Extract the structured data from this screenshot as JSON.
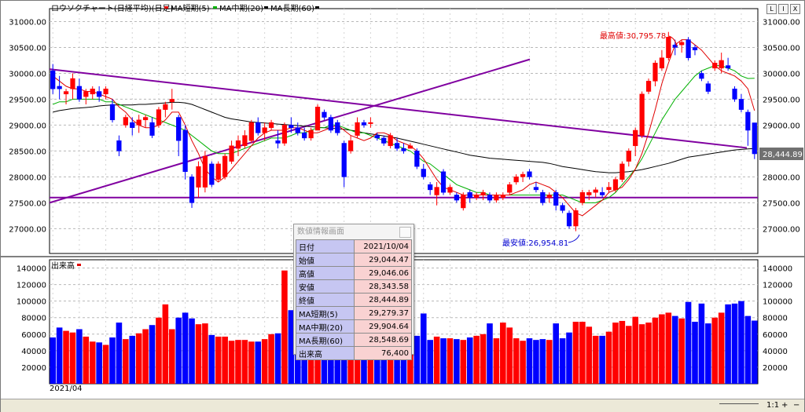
{
  "window": {
    "minimize": "L",
    "restore": "I",
    "close": "X"
  },
  "chart_title": "ロウソクチャート(日経平均)(日足)",
  "legend": [
    {
      "label": "MA短期(5)",
      "color": "#e00000"
    },
    {
      "label": "MA中期(20)",
      "color": "#00b000"
    },
    {
      "label": "MA長期(60)",
      "color": "#000000"
    }
  ],
  "volume_title": "出来高",
  "volume_legend_color": "#e00000",
  "annotations": {
    "high": "最高値:30,795.78",
    "low": "最安値:26,954.81"
  },
  "last_price_label": "28,444.89",
  "x_axis_label": "2021/04",
  "info_panel": {
    "title": "数値情報画面",
    "rows": [
      {
        "label": "日付",
        "value": "2021/10/04"
      },
      {
        "label": "始値",
        "value": "29,044.47"
      },
      {
        "label": "高値",
        "value": "29,046.06"
      },
      {
        "label": "安値",
        "value": "28,343.58"
      },
      {
        "label": "終値",
        "value": "28,444.89"
      },
      {
        "label": "MA短期(5)",
        "value": "29,279.37"
      },
      {
        "label": "MA中期(20)",
        "value": "29,904.64"
      },
      {
        "label": "MA長期(60)",
        "value": "28,548.69"
      },
      {
        "label": "出来高",
        "value": "76,400"
      }
    ]
  },
  "statusbar": {
    "zoom": "1:1",
    "plus": "+",
    "minus": "−"
  },
  "chart_data": [
    {
      "type": "candlestick",
      "title": "ロウソクチャート(日経平均)(日足)",
      "y_ticks": [
        "27000.00",
        "27500.00",
        "28000.00",
        "28500.00",
        "29000.00",
        "29500.00",
        "30000.00",
        "30500.00",
        "31000.00"
      ],
      "ylim": [
        26520,
        31250
      ],
      "series_names": [
        "MA短期(5)",
        "MA中期(20)",
        "MA長期(60)"
      ],
      "up_color": "#ff0000",
      "down_color": "#0000ff",
      "trendlines_color": "#8000a0",
      "horizontal_line": 27600,
      "candles": [
        [
          30050,
          30180,
          29600,
          29700
        ],
        [
          29750,
          29950,
          29500,
          29700
        ],
        [
          29600,
          29700,
          29400,
          29650
        ],
        [
          29700,
          30000,
          29500,
          29900
        ],
        [
          29750,
          29900,
          29450,
          29500
        ],
        [
          29550,
          29700,
          29400,
          29650
        ],
        [
          29600,
          29750,
          29500,
          29700
        ],
        [
          29650,
          29750,
          29450,
          29550
        ],
        [
          29600,
          29750,
          29500,
          29700
        ],
        [
          29400,
          29500,
          29050,
          29100
        ],
        [
          28700,
          28800,
          28400,
          28500
        ],
        [
          29000,
          29200,
          28950,
          29150
        ],
        [
          29050,
          29150,
          28800,
          28950
        ],
        [
          29000,
          29200,
          28850,
          29100
        ],
        [
          29100,
          29200,
          28950,
          29150
        ],
        [
          29050,
          29150,
          28750,
          28800
        ],
        [
          29000,
          29350,
          28950,
          29300
        ],
        [
          29300,
          29450,
          29150,
          29400
        ],
        [
          29450,
          29700,
          29300,
          29500
        ],
        [
          29150,
          29200,
          28400,
          28700
        ],
        [
          28900,
          29000,
          27950,
          28100
        ],
        [
          28000,
          28050,
          27400,
          27500
        ],
        [
          27800,
          28300,
          27600,
          28200
        ],
        [
          27800,
          28500,
          27700,
          28400
        ],
        [
          28250,
          28300,
          27800,
          27850
        ],
        [
          27950,
          28300,
          27900,
          28250
        ],
        [
          28000,
          28450,
          27950,
          28400
        ],
        [
          28300,
          28700,
          28250,
          28600
        ],
        [
          28550,
          28800,
          28400,
          28700
        ],
        [
          28600,
          28900,
          28550,
          28800
        ],
        [
          28700,
          29100,
          28650,
          29050
        ],
        [
          29050,
          29150,
          28800,
          28850
        ],
        [
          28850,
          29050,
          28700,
          28950
        ],
        [
          28950,
          29100,
          28900,
          29050
        ],
        [
          28700,
          28900,
          28550,
          28650
        ],
        [
          28650,
          29050,
          28600,
          29000
        ],
        [
          29000,
          29150,
          28850,
          28950
        ],
        [
          28950,
          29050,
          28800,
          28850
        ],
        [
          28850,
          28950,
          28700,
          28750
        ],
        [
          28750,
          28950,
          28700,
          28900
        ],
        [
          28900,
          29400,
          28900,
          29350
        ],
        [
          29250,
          29300,
          29100,
          29150
        ],
        [
          29150,
          29200,
          28850,
          28900
        ],
        [
          29050,
          29100,
          28800,
          28850
        ],
        [
          28650,
          28700,
          27800,
          28000
        ],
        [
          28500,
          28800,
          28450,
          28700
        ],
        [
          28800,
          29150,
          28750,
          29050
        ],
        [
          29050,
          29100,
          28950,
          29000
        ],
        [
          29050,
          29150,
          28950,
          29050
        ],
        [
          28800,
          28850,
          28700,
          28750
        ],
        [
          28750,
          28800,
          28600,
          28650
        ],
        [
          28600,
          28850,
          28550,
          28800
        ],
        [
          28650,
          28750,
          28500,
          28550
        ],
        [
          28550,
          28650,
          28450,
          28500
        ],
        [
          28550,
          28650,
          28550,
          28600
        ],
        [
          28500,
          28550,
          28150,
          28200
        ],
        [
          28150,
          28250,
          27950,
          28000
        ],
        [
          27850,
          27900,
          27650,
          27750
        ],
        [
          27650,
          27900,
          27450,
          27800
        ],
        [
          28100,
          28150,
          27650,
          27700
        ],
        [
          27700,
          27850,
          27650,
          27800
        ],
        [
          27650,
          27700,
          27500,
          27550
        ],
        [
          27400,
          27700,
          27350,
          27650
        ],
        [
          27700,
          27750,
          27500,
          27600
        ],
        [
          27600,
          27700,
          27550,
          27650
        ],
        [
          27650,
          27750,
          27550,
          27700
        ],
        [
          27650,
          27700,
          27500,
          27550
        ],
        [
          27550,
          27700,
          27500,
          27650
        ],
        [
          27600,
          27700,
          27550,
          27650
        ],
        [
          27700,
          27900,
          27650,
          27850
        ],
        [
          27900,
          28050,
          27850,
          28000
        ],
        [
          28000,
          28100,
          27900,
          28050
        ],
        [
          28100,
          28150,
          27950,
          28000
        ],
        [
          27800,
          27900,
          27700,
          27750
        ],
        [
          27700,
          27750,
          27450,
          27500
        ],
        [
          27600,
          27700,
          27500,
          27650
        ],
        [
          27700,
          27750,
          27350,
          27450
        ],
        [
          27450,
          27500,
          27300,
          27350
        ],
        [
          27300,
          27350,
          27000,
          27050
        ],
        [
          27050,
          27400,
          26950,
          27350
        ],
        [
          27500,
          27750,
          27450,
          27700
        ],
        [
          27650,
          27750,
          27550,
          27700
        ],
        [
          27700,
          27800,
          27600,
          27750
        ],
        [
          27700,
          27800,
          27600,
          27650
        ],
        [
          27750,
          27900,
          27700,
          27800
        ],
        [
          27750,
          28000,
          27700,
          27950
        ],
        [
          27950,
          28300,
          27900,
          28250
        ],
        [
          28300,
          28550,
          28200,
          28500
        ],
        [
          28600,
          28950,
          28400,
          28900
        ],
        [
          28800,
          29650,
          28750,
          29600
        ],
        [
          29650,
          29900,
          29600,
          29850
        ],
        [
          29850,
          30250,
          29750,
          30200
        ],
        [
          30100,
          30450,
          30050,
          30300
        ],
        [
          30300,
          30800,
          30250,
          30700
        ],
        [
          30550,
          30650,
          30350,
          30500
        ],
        [
          30550,
          30650,
          30400,
          30600
        ],
        [
          30650,
          30700,
          30250,
          30300
        ],
        [
          30500,
          30550,
          30350,
          30450
        ],
        [
          30000,
          30050,
          29850,
          29900
        ],
        [
          29800,
          29850,
          29600,
          29650
        ],
        [
          30100,
          30250,
          30050,
          30200
        ],
        [
          30100,
          30400,
          30000,
          30250
        ],
        [
          30150,
          30300,
          30050,
          30100
        ],
        [
          29700,
          29750,
          29450,
          29500
        ],
        [
          29500,
          29600,
          29250,
          29300
        ],
        [
          29250,
          29300,
          28600,
          28900
        ],
        [
          29044,
          29046,
          28344,
          28445
        ]
      ],
      "ma_short": [
        29950,
        29850,
        29750,
        29700,
        29700,
        29650,
        29650,
        29600,
        29550,
        29500,
        29350,
        29250,
        29100,
        29000,
        28950,
        28950,
        29000,
        29100,
        29250,
        29250,
        29000,
        28700,
        28450,
        28150,
        28000,
        27900,
        28000,
        28150,
        28300,
        28450,
        28600,
        28750,
        28850,
        28900,
        28900,
        28900,
        28950,
        28950,
        28900,
        28850,
        28850,
        28900,
        28950,
        29000,
        28900,
        28800,
        28750,
        28700,
        28750,
        28850,
        28850,
        28800,
        28700,
        28650,
        28600,
        28500,
        28350,
        28150,
        27950,
        27800,
        27750,
        27700,
        27650,
        27650,
        27650,
        27650,
        27650,
        27650,
        27650,
        27650,
        27700,
        27750,
        27850,
        27900,
        27850,
        27800,
        27700,
        27600,
        27450,
        27300,
        27250,
        27350,
        27450,
        27550,
        27700,
        27750,
        27800,
        27950,
        28150,
        28450,
        28850,
        29300,
        29800,
        30200,
        30550,
        30650,
        30650,
        30550,
        30450,
        30300,
        30150,
        30050,
        30000,
        29950,
        29850,
        29700,
        29279
      ],
      "ma_mid": [
        29400,
        29450,
        29450,
        29500,
        29500,
        29500,
        29500,
        29500,
        29450,
        29450,
        29400,
        29350,
        29300,
        29250,
        29200,
        29150,
        29100,
        29050,
        29000,
        28950,
        28900,
        28800,
        28700,
        28600,
        28500,
        28450,
        28450,
        28450,
        28500,
        28550,
        28600,
        28650,
        28700,
        28750,
        28750,
        28750,
        28800,
        28850,
        28850,
        28900,
        28950,
        28950,
        29000,
        29000,
        28950,
        28900,
        28850,
        28850,
        28800,
        28750,
        28700,
        28650,
        28600,
        28550,
        28500,
        28400,
        28300,
        28250,
        28150,
        28050,
        27950,
        27850,
        27800,
        27750,
        27700,
        27700,
        27650,
        27650,
        27650,
        27650,
        27650,
        27650,
        27650,
        27650,
        27650,
        27650,
        27650,
        27650,
        27600,
        27550,
        27500,
        27500,
        27500,
        27550,
        27600,
        27700,
        27850,
        28000,
        28150,
        28350,
        28600,
        28850,
        29100,
        29300,
        29500,
        29650,
        29800,
        29950,
        30050,
        30100,
        30150,
        30150,
        30100,
        30050,
        29950,
        29900,
        29904
      ],
      "ma_long": [
        29250,
        29280,
        29300,
        29320,
        29330,
        29340,
        29350,
        29370,
        29380,
        29390,
        29390,
        29390,
        29390,
        29400,
        29400,
        29410,
        29420,
        29430,
        29440,
        29440,
        29430,
        29400,
        29350,
        29300,
        29250,
        29200,
        29150,
        29120,
        29100,
        29080,
        29060,
        29050,
        29040,
        29030,
        29020,
        29010,
        29000,
        28990,
        28980,
        28970,
        28960,
        28950,
        28940,
        28930,
        28920,
        28900,
        28880,
        28850,
        28830,
        28810,
        28790,
        28770,
        28750,
        28720,
        28690,
        28660,
        28630,
        28600,
        28570,
        28540,
        28510,
        28480,
        28450,
        28420,
        28400,
        28380,
        28360,
        28350,
        28340,
        28330,
        28320,
        28310,
        28300,
        28290,
        28280,
        28260,
        28230,
        28200,
        28180,
        28160,
        28140,
        28120,
        28100,
        28090,
        28080,
        28080,
        28090,
        28100,
        28120,
        28140,
        28170,
        28200,
        28230,
        28260,
        28300,
        28340,
        28380,
        28400,
        28420,
        28440,
        28460,
        28480,
        28500,
        28520,
        28530,
        28540,
        28548
      ]
    },
    {
      "type": "bar",
      "title": "出来高",
      "y_ticks": [
        "20000",
        "40000",
        "60000",
        "80000",
        "100000",
        "120000",
        "140000"
      ],
      "ylim": [
        0,
        150000
      ],
      "up_color": "#ff0000",
      "down_color": "#0000ff",
      "values": [
        56000,
        68000,
        64000,
        62000,
        66000,
        57000,
        51000,
        50000,
        47000,
        56000,
        74000,
        54000,
        58000,
        61000,
        66000,
        71000,
        80000,
        96000,
        66000,
        80000,
        86000,
        79000,
        72000,
        73000,
        59000,
        57000,
        57000,
        52000,
        53000,
        53000,
        51000,
        51000,
        54000,
        60000,
        61000,
        137000,
        89000,
        54000,
        51000,
        56000,
        59000,
        62000,
        56000,
        55000,
        58000,
        56000,
        54000,
        56000,
        52000,
        58000,
        55000,
        54000,
        53000,
        56000,
        53000,
        58000,
        85000,
        53000,
        57000,
        55000,
        55000,
        54000,
        53000,
        56000,
        58000,
        60000,
        73000,
        55000,
        74000,
        68000,
        55000,
        52000,
        55000,
        53000,
        54000,
        53000,
        73000,
        55000,
        62000,
        75000,
        75000,
        69000,
        58000,
        58000,
        63000,
        74000,
        76000,
        70000,
        81000,
        72000,
        74000,
        80000,
        84000,
        86000,
        82000,
        79000,
        99000,
        75000,
        97000,
        73000,
        80000,
        86000,
        96000,
        97000,
        100000,
        82000,
        76400
      ]
    }
  ]
}
